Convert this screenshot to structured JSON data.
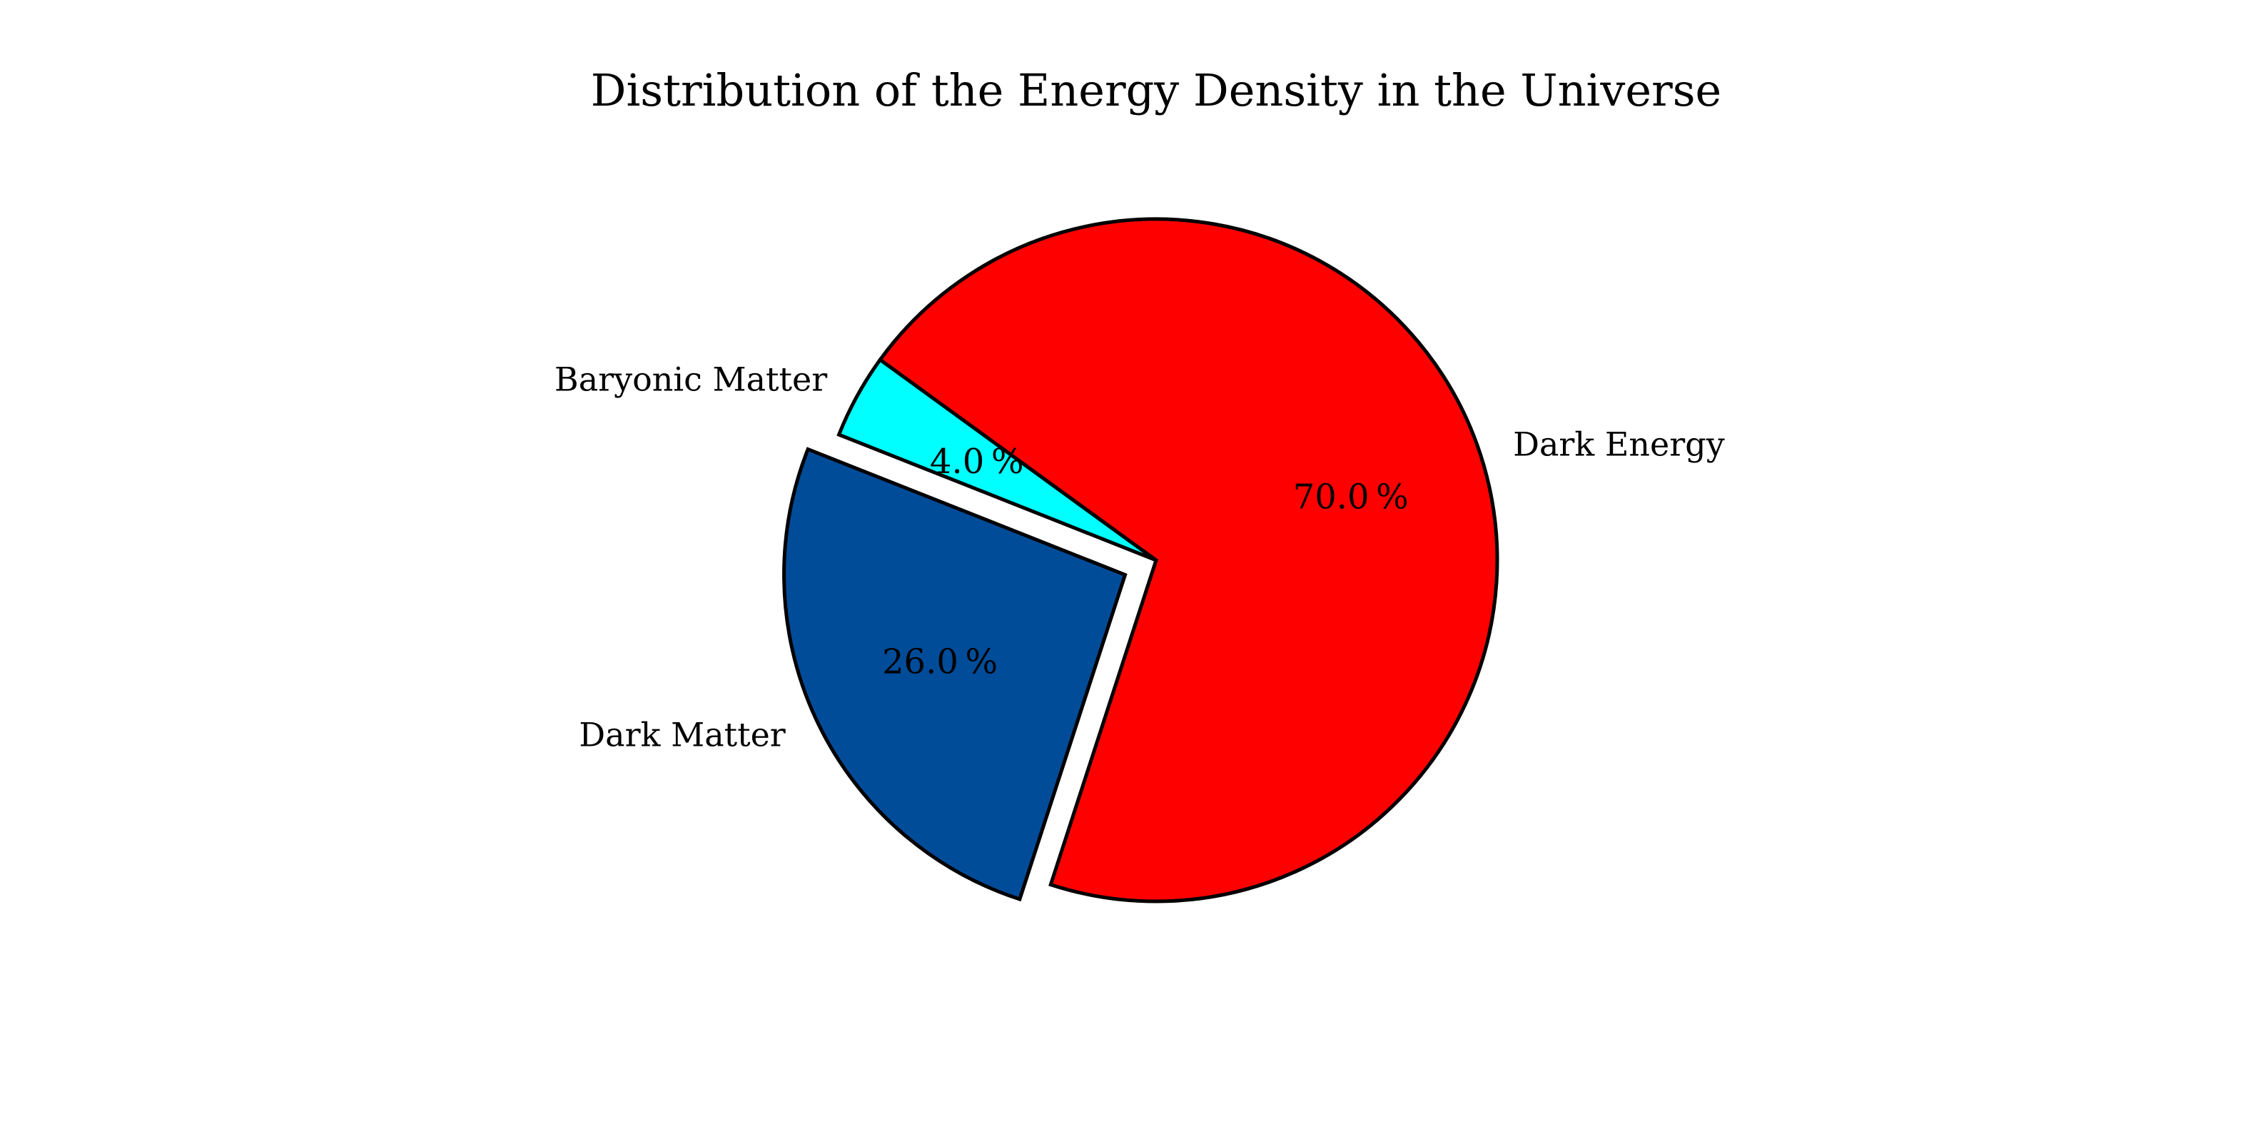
{
  "chart_data": {
    "type": "pie",
    "title": "Distribution of the Energy Density in the Universe",
    "start_angle_deg": 144,
    "direction": "counterclockwise",
    "slices": [
      {
        "label": "Baryonic Matter",
        "value": 4.0,
        "pct_text": "4.0 %",
        "color": "#00ffff",
        "exploded": false
      },
      {
        "label": "Dark Matter",
        "value": 26.0,
        "pct_text": "26.0 %",
        "color": "#004c99",
        "exploded": true
      },
      {
        "label": "Dark Energy",
        "value": 70.0,
        "pct_text": "70.0 %",
        "color": "#ff0000",
        "exploded": false
      }
    ]
  }
}
